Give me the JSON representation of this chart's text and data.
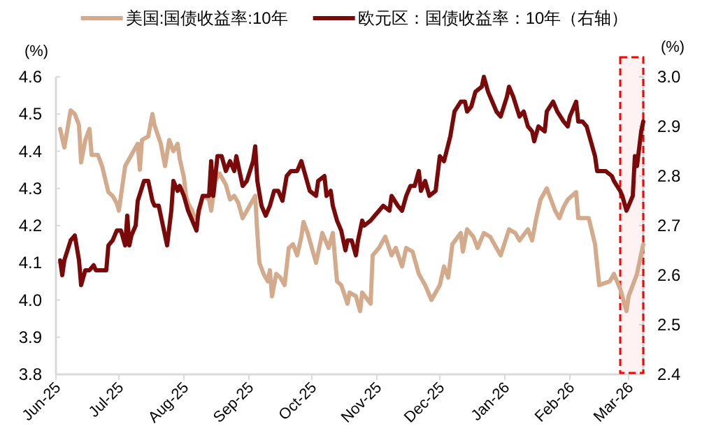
{
  "chart_data": {
    "type": "line",
    "legend": "top",
    "ylabel": "(%)",
    "y2label": "(%)",
    "xlim": [
      "2025-06-01",
      "2026-03-08"
    ],
    "xticks": [
      {
        "value": "2025-06-01",
        "label": "Jun-25"
      },
      {
        "value": "2025-07-01",
        "label": "Jul-25"
      },
      {
        "value": "2025-08-01",
        "label": "Aug-25"
      },
      {
        "value": "2025-09-01",
        "label": "Sep-25"
      },
      {
        "value": "2025-10-01",
        "label": "Oct-25"
      },
      {
        "value": "2025-11-01",
        "label": "Nov-25"
      },
      {
        "value": "2025-12-01",
        "label": "Dec-25"
      },
      {
        "value": "2026-01-01",
        "label": "Jan-26"
      },
      {
        "value": "2026-02-01",
        "label": "Feb-26"
      },
      {
        "value": "2026-03-01",
        "label": "Mar-26"
      }
    ],
    "ylim": [
      3.8,
      4.6
    ],
    "yticks": [
      {
        "value": 3.8,
        "label": "3.8"
      },
      {
        "value": 3.9,
        "label": "3.9"
      },
      {
        "value": 4.0,
        "label": "4.0"
      },
      {
        "value": 4.1,
        "label": "4.1"
      },
      {
        "value": 4.2,
        "label": "4.2"
      },
      {
        "value": 4.3,
        "label": "4.3"
      },
      {
        "value": 4.4,
        "label": "4.4"
      },
      {
        "value": 4.5,
        "label": "4.5"
      },
      {
        "value": 4.6,
        "label": "4.6"
      }
    ],
    "y2lim": [
      2.4,
      3.0
    ],
    "y2ticks": [
      {
        "value": 2.4,
        "label": "2.4"
      },
      {
        "value": 2.5,
        "label": "2.5"
      },
      {
        "value": 2.6,
        "label": "2.6"
      },
      {
        "value": 2.7,
        "label": "2.7"
      },
      {
        "value": 2.8,
        "label": "2.8"
      },
      {
        "value": 2.9,
        "label": "2.9"
      },
      {
        "value": 3.0,
        "label": "3.0"
      }
    ],
    "bands": [
      {
        "axis": "x",
        "from": "2026-02-25",
        "to": "2026-03-08",
        "color": "#ff0000"
      }
    ],
    "series": [
      {
        "name": "美国:国债收益率:10年",
        "color": "#d4aa8c",
        "axis": "y",
        "x": [
          "2025-06-03",
          "2025-06-05",
          "2025-06-08",
          "2025-06-10",
          "2025-06-12",
          "2025-06-13",
          "2025-06-15",
          "2025-06-17",
          "2025-06-18",
          "2025-06-21",
          "2025-06-23",
          "2025-06-26",
          "2025-06-28",
          "2025-06-30",
          "2025-07-01",
          "2025-07-04",
          "2025-07-07",
          "2025-07-10",
          "2025-07-11",
          "2025-07-12",
          "2025-07-15",
          "2025-07-17",
          "2025-07-18",
          "2025-07-21",
          "2025-07-23",
          "2025-07-25",
          "2025-07-27",
          "2025-07-29",
          "2025-07-30",
          "2025-08-01",
          "2025-08-02",
          "2025-08-03",
          "2025-08-05",
          "2025-08-06",
          "2025-08-08",
          "2025-08-10",
          "2025-08-13",
          "2025-08-14",
          "2025-08-16",
          "2025-08-18",
          "2025-08-21",
          "2025-08-23",
          "2025-08-25",
          "2025-08-27",
          "2025-08-29",
          "2025-08-31",
          "2025-09-04",
          "2025-09-05",
          "2025-09-06",
          "2025-09-08",
          "2025-09-10",
          "2025-09-11",
          "2025-09-12",
          "2025-09-14",
          "2025-09-16",
          "2025-09-18",
          "2025-09-20",
          "2025-09-22",
          "2025-09-24",
          "2025-09-26",
          "2025-09-27",
          "2025-09-29",
          "2025-10-01",
          "2025-10-03",
          "2025-10-06",
          "2025-10-09",
          "2025-10-11",
          "2025-10-13",
          "2025-10-15",
          "2025-10-18",
          "2025-10-19",
          "2025-10-22",
          "2025-10-24",
          "2025-10-25",
          "2025-10-29",
          "2025-10-30",
          "2025-11-02",
          "2025-11-05",
          "2025-11-08",
          "2025-11-10",
          "2025-11-13",
          "2025-11-15",
          "2025-11-18",
          "2025-11-21",
          "2025-11-24",
          "2025-11-27",
          "2025-12-01",
          "2025-12-03",
          "2025-12-05",
          "2025-12-07",
          "2025-12-11",
          "2025-12-12",
          "2025-12-14",
          "2025-12-17",
          "2025-12-19",
          "2025-12-22",
          "2025-12-25",
          "2025-12-28",
          "2025-12-30",
          "2026-01-03",
          "2026-01-06",
          "2026-01-08",
          "2026-01-12",
          "2026-01-14",
          "2026-01-16",
          "2026-01-18",
          "2026-01-21",
          "2026-01-23",
          "2026-01-25",
          "2026-01-27",
          "2026-01-29",
          "2026-01-31",
          "2026-02-04",
          "2026-02-05",
          "2026-02-10",
          "2026-02-13",
          "2026-02-15",
          "2026-02-20",
          "2026-02-22",
          "2026-02-25",
          "2026-02-28",
          "2026-03-01",
          "2026-03-03",
          "2026-03-05",
          "2026-03-08"
        ],
        "values": [
          4.46,
          4.41,
          4.51,
          4.5,
          4.47,
          4.37,
          4.43,
          4.46,
          4.39,
          4.39,
          4.36,
          4.29,
          4.28,
          4.26,
          4.24,
          4.36,
          4.39,
          4.42,
          4.35,
          4.43,
          4.44,
          4.5,
          4.47,
          4.42,
          4.36,
          4.43,
          4.4,
          4.42,
          4.38,
          4.33,
          4.28,
          4.26,
          4.24,
          4.22,
          4.23,
          4.28,
          4.27,
          4.24,
          4.32,
          4.34,
          4.31,
          4.27,
          4.28,
          4.26,
          4.22,
          4.24,
          4.28,
          4.18,
          4.1,
          4.07,
          4.05,
          4.08,
          4.01,
          4.07,
          4.06,
          4.04,
          4.14,
          4.15,
          4.12,
          4.17,
          4.21,
          4.18,
          4.14,
          4.1,
          4.18,
          4.14,
          4.18,
          4.05,
          4.04,
          3.99,
          4.02,
          4.01,
          3.97,
          4.02,
          3.99,
          4.12,
          4.14,
          4.17,
          4.12,
          4.14,
          4.09,
          4.14,
          4.13,
          4.07,
          4.04,
          4.0,
          4.04,
          4.09,
          4.06,
          4.15,
          4.18,
          4.13,
          4.19,
          4.17,
          4.14,
          4.18,
          4.17,
          4.14,
          4.12,
          4.19,
          4.18,
          4.16,
          4.19,
          4.16,
          4.22,
          4.27,
          4.3,
          4.27,
          4.24,
          4.22,
          4.25,
          4.27,
          4.29,
          4.22,
          4.22,
          4.15,
          4.04,
          4.05,
          4.07,
          4.03,
          3.97,
          4.01,
          4.04,
          4.07,
          4.15
        ]
      },
      {
        "name": "欧元区：国债收益率：10年（右轴）",
        "color": "#7a0a0a",
        "axis": "y2",
        "x": [
          "2025-06-03",
          "2025-06-04",
          "2025-06-05",
          "2025-06-08",
          "2025-06-10",
          "2025-06-12",
          "2025-06-13",
          "2025-06-15",
          "2025-06-17",
          "2025-06-19",
          "2025-06-20",
          "2025-06-22",
          "2025-06-23",
          "2025-06-25",
          "2025-06-26",
          "2025-06-28",
          "2025-06-30",
          "2025-07-02",
          "2025-07-04",
          "2025-07-05",
          "2025-07-06",
          "2025-07-07",
          "2025-07-09",
          "2025-07-10",
          "2025-07-13",
          "2025-07-15",
          "2025-07-17",
          "2025-07-18",
          "2025-07-20",
          "2025-07-22",
          "2025-07-24",
          "2025-07-26",
          "2025-07-27",
          "2025-07-29",
          "2025-07-30",
          "2025-08-01",
          "2025-08-03",
          "2025-08-05",
          "2025-08-07",
          "2025-08-08",
          "2025-08-10",
          "2025-08-13",
          "2025-08-14",
          "2025-08-15",
          "2025-08-17",
          "2025-08-19",
          "2025-08-21",
          "2025-08-23",
          "2025-08-25",
          "2025-08-26",
          "2025-08-28",
          "2025-08-29",
          "2025-08-31",
          "2025-09-03",
          "2025-09-04",
          "2025-09-05",
          "2025-09-07",
          "2025-09-09",
          "2025-09-11",
          "2025-09-13",
          "2025-09-15",
          "2025-09-17",
          "2025-09-19",
          "2025-09-21",
          "2025-09-24",
          "2025-09-26",
          "2025-09-28",
          "2025-09-30",
          "2025-10-03",
          "2025-10-04",
          "2025-10-07",
          "2025-10-08",
          "2025-10-10",
          "2025-10-11",
          "2025-10-13",
          "2025-10-15",
          "2025-10-17",
          "2025-10-18",
          "2025-10-20",
          "2025-10-22",
          "2025-10-23",
          "2025-10-25",
          "2025-10-26",
          "2025-10-29",
          "2025-10-31",
          "2025-11-02",
          "2025-11-04",
          "2025-11-07",
          "2025-11-08",
          "2025-11-11",
          "2025-11-13",
          "2025-11-15",
          "2025-11-17",
          "2025-11-19",
          "2025-11-21",
          "2025-11-22",
          "2025-11-24",
          "2025-11-26",
          "2025-11-29",
          "2025-12-01",
          "2025-12-03",
          "2025-12-06",
          "2025-12-08",
          "2025-12-11",
          "2025-12-13",
          "2025-12-14",
          "2025-12-16",
          "2025-12-18",
          "2025-12-21",
          "2025-12-22",
          "2025-12-24",
          "2025-12-26",
          "2025-12-28",
          "2025-12-30",
          "2026-01-02",
          "2026-01-03",
          "2026-01-05",
          "2026-01-08",
          "2026-01-10",
          "2026-01-12",
          "2026-01-14",
          "2026-01-15",
          "2026-01-17",
          "2026-01-20",
          "2026-01-21",
          "2026-01-24",
          "2026-01-26",
          "2026-01-29",
          "2026-01-31",
          "2026-02-01",
          "2026-02-04",
          "2026-02-05",
          "2026-02-07",
          "2026-02-09",
          "2026-02-11",
          "2026-02-13",
          "2026-02-14",
          "2026-02-16",
          "2026-02-18",
          "2026-02-21",
          "2026-02-22",
          "2026-02-25",
          "2026-02-26",
          "2026-02-28",
          "2026-03-01",
          "2026-03-03",
          "2026-03-04",
          "2026-03-05",
          "2026-03-07",
          "2026-03-08"
        ],
        "values": [
          2.63,
          2.6,
          2.63,
          2.67,
          2.68,
          2.63,
          2.58,
          2.61,
          2.61,
          2.62,
          2.61,
          2.61,
          2.61,
          2.61,
          2.66,
          2.67,
          2.69,
          2.69,
          2.66,
          2.72,
          2.66,
          2.68,
          2.7,
          2.75,
          2.79,
          2.79,
          2.75,
          2.74,
          2.74,
          2.7,
          2.66,
          2.73,
          2.79,
          2.77,
          2.78,
          2.76,
          2.73,
          2.71,
          2.69,
          2.73,
          2.76,
          2.76,
          2.83,
          2.76,
          2.84,
          2.84,
          2.81,
          2.83,
          2.81,
          2.84,
          2.8,
          2.78,
          2.79,
          2.83,
          2.86,
          2.79,
          2.74,
          2.72,
          2.74,
          2.77,
          2.77,
          2.75,
          2.8,
          2.81,
          2.81,
          2.83,
          2.8,
          2.77,
          2.76,
          2.79,
          2.8,
          2.76,
          2.77,
          2.74,
          2.71,
          2.69,
          2.65,
          2.67,
          2.67,
          2.64,
          2.67,
          2.71,
          2.7,
          2.71,
          2.72,
          2.73,
          2.74,
          2.73,
          2.76,
          2.74,
          2.73,
          2.76,
          2.78,
          2.78,
          2.81,
          2.77,
          2.79,
          2.76,
          2.77,
          2.84,
          2.83,
          2.88,
          2.93,
          2.95,
          2.95,
          2.93,
          2.94,
          2.97,
          2.98,
          3.0,
          2.97,
          2.95,
          2.93,
          2.92,
          2.96,
          2.98,
          2.96,
          2.92,
          2.93,
          2.9,
          2.89,
          2.87,
          2.9,
          2.89,
          2.93,
          2.95,
          2.93,
          2.91,
          2.9,
          2.92,
          2.95,
          2.91,
          2.91,
          2.9,
          2.87,
          2.84,
          2.81,
          2.81,
          2.81,
          2.8,
          2.79,
          2.77,
          2.76,
          2.73,
          2.74,
          2.76,
          2.84,
          2.82,
          2.89,
          2.91
        ]
      }
    ]
  }
}
